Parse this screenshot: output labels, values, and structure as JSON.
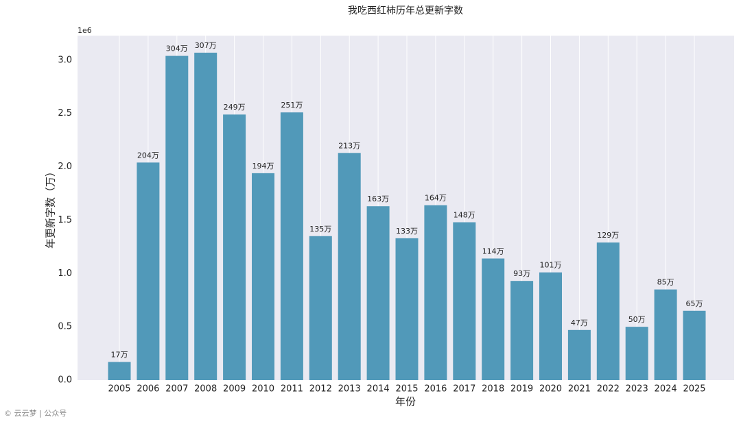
{
  "chart_data": {
    "type": "bar",
    "title": "我吃西红柿历年总更新字数",
    "xlabel": "年份",
    "ylabel": "年更新字数（万）",
    "y_offset_label": "1e6",
    "watermark": "© 云云梦 | 公众号",
    "color": "#5199b9",
    "background": "#eaeaf2",
    "categories": [
      "2005",
      "2006",
      "2007",
      "2008",
      "2009",
      "2010",
      "2011",
      "2012",
      "2013",
      "2014",
      "2015",
      "2016",
      "2017",
      "2018",
      "2019",
      "2020",
      "2021",
      "2022",
      "2023",
      "2024",
      "2025"
    ],
    "values": [
      170000,
      2040000,
      3040000,
      3070000,
      2490000,
      1940000,
      2510000,
      1350000,
      2130000,
      1630000,
      1330000,
      1640000,
      1480000,
      1140000,
      930000,
      1010000,
      470000,
      1290000,
      500000,
      850000,
      650000
    ],
    "value_labels": [
      "17万",
      "204万",
      "304万",
      "307万",
      "249万",
      "194万",
      "251万",
      "135万",
      "213万",
      "163万",
      "133万",
      "164万",
      "148万",
      "114万",
      "93万",
      "101万",
      "47万",
      "129万",
      "50万",
      "85万",
      "65万"
    ],
    "ylim": [
      0,
      3230000
    ],
    "yticks": [
      {
        "value": 0,
        "label": "0.0"
      },
      {
        "value": 500000,
        "label": "0.5"
      },
      {
        "value": 1000000,
        "label": "1.0"
      },
      {
        "value": 1500000,
        "label": "1.5"
      },
      {
        "value": 2000000,
        "label": "2.0"
      },
      {
        "value": 2500000,
        "label": "2.5"
      },
      {
        "value": 3000000,
        "label": "3.0"
      }
    ],
    "grid": "x"
  }
}
